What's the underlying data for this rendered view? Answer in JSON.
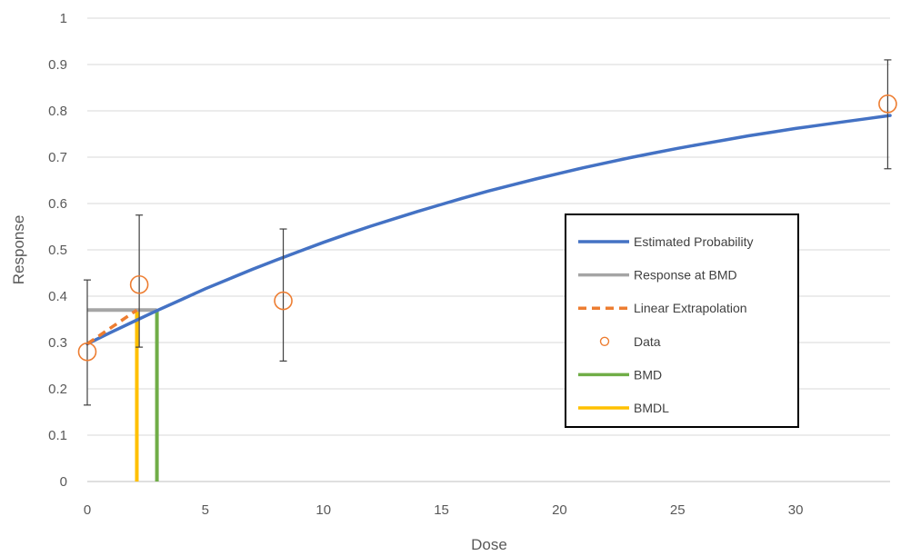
{
  "chart_data": {
    "type": "scatter",
    "xlabel": "Dose",
    "ylabel": "Response",
    "xlim": [
      0,
      34
    ],
    "ylim": [
      0,
      1
    ],
    "x_ticks": [
      0,
      5,
      10,
      15,
      20,
      25,
      30
    ],
    "y_ticks": [
      0,
      0.1,
      0.2,
      0.3,
      0.4,
      0.5,
      0.6,
      0.7,
      0.8,
      0.9,
      1
    ],
    "grid": "horizontal",
    "legend_position": "right",
    "series": [
      {
        "name": "Estimated Probability",
        "kind": "line",
        "color": "#4472C4",
        "x": [
          0,
          1,
          2,
          3,
          4,
          5,
          6,
          7,
          8,
          9,
          10,
          11,
          12,
          13,
          14,
          15,
          16,
          17,
          18,
          19,
          20,
          21,
          22,
          23,
          24,
          25,
          26,
          27,
          28,
          29,
          30,
          31,
          32,
          33,
          34
        ],
        "y": [
          0.297,
          0.322,
          0.346,
          0.37,
          0.393,
          0.416,
          0.437,
          0.458,
          0.478,
          0.497,
          0.516,
          0.534,
          0.551,
          0.567,
          0.583,
          0.598,
          0.613,
          0.627,
          0.64,
          0.653,
          0.665,
          0.677,
          0.688,
          0.699,
          0.709,
          0.719,
          0.728,
          0.737,
          0.746,
          0.754,
          0.762,
          0.769,
          0.776,
          0.783,
          0.79
        ]
      },
      {
        "name": "Response at BMD",
        "kind": "line",
        "color": "#A5A5A5",
        "x": [
          0,
          2.95
        ],
        "y": [
          0.37,
          0.37
        ]
      },
      {
        "name": "Linear Extrapolation",
        "kind": "dashed-line",
        "color": "#ED7D31",
        "x": [
          0,
          2.1
        ],
        "y": [
          0.297,
          0.37
        ]
      },
      {
        "name": "Data",
        "kind": "points",
        "color": "#ED7D31",
        "x": [
          0,
          2.2,
          8.3,
          33.9
        ],
        "y": [
          0.28,
          0.425,
          0.39,
          0.815
        ],
        "error_low": [
          0.165,
          0.29,
          0.26,
          0.675
        ],
        "error_high": [
          0.435,
          0.575,
          0.545,
          0.91
        ]
      },
      {
        "name": "BMD",
        "kind": "line",
        "color": "#70AD47",
        "x": [
          2.95,
          2.95
        ],
        "y": [
          0,
          0.37
        ]
      },
      {
        "name": "BMDL",
        "kind": "line",
        "color": "#FFC000",
        "x": [
          2.1,
          2.1
        ],
        "y": [
          0,
          0.37
        ]
      }
    ]
  }
}
